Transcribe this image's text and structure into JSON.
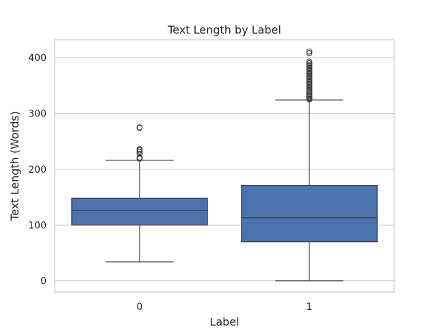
{
  "chart_data": {
    "type": "box",
    "title": "Text Length by Label",
    "xlabel": "Label",
    "ylabel": "Text Length (Words)",
    "ylim": [
      -20,
      432
    ],
    "yticks": [
      0,
      100,
      200,
      300,
      400
    ],
    "ytick_labels": [
      "0",
      "100",
      "200",
      "300",
      "400"
    ],
    "grid": true,
    "box_color": "#4c72b0",
    "line_color": "#3f3f3f",
    "categories": [
      "0",
      "1"
    ],
    "boxes": [
      {
        "category": "0",
        "whisker_low": 34,
        "q1": 100,
        "median": 126,
        "q3": 148,
        "whisker_high": 216,
        "outliers": [
          219,
          220,
          221,
          228,
          231,
          234,
          236,
          274,
          275
        ]
      },
      {
        "category": "1",
        "whisker_low": 0,
        "q1": 70,
        "median": 113,
        "q3": 171,
        "whisker_high": 324,
        "outliers": [
          325,
          327,
          329,
          331,
          333,
          335,
          338,
          340,
          342,
          345,
          347,
          350,
          352,
          355,
          357,
          360,
          362,
          365,
          367,
          370,
          372,
          375,
          377,
          380,
          382,
          385,
          387,
          390,
          393,
          408,
          411
        ]
      }
    ]
  }
}
